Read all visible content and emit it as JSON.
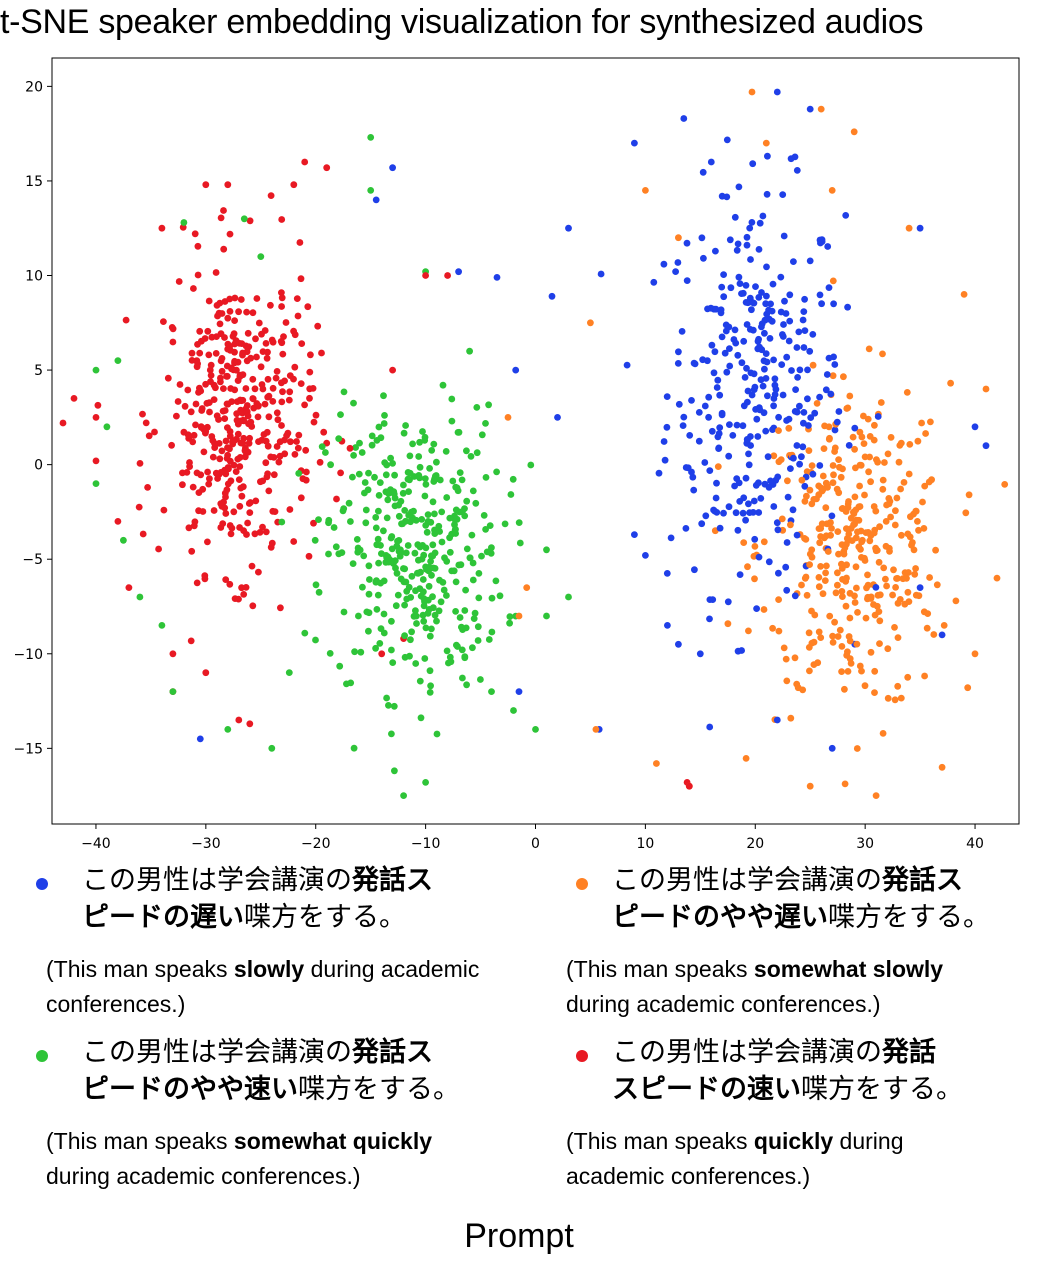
{
  "chart_data": {
    "type": "scatter",
    "title": "t-SNE speaker embedding visualization for synthesized audios",
    "xlim": [
      -44,
      44
    ],
    "ylim": [
      -19,
      21.5
    ],
    "x_ticks": [
      -40,
      -30,
      -20,
      -10,
      0,
      10,
      20,
      30,
      40
    ],
    "y_ticks": [
      -15,
      -10,
      -5,
      0,
      5,
      10,
      15,
      20
    ],
    "grid": false,
    "legend_title": "Prompt",
    "legend_placement": "below",
    "series": [
      {
        "color": "#1f3fe8",
        "cluster": {
          "center": [
            20,
            4
          ],
          "spread": [
            6.5,
            8.5
          ],
          "count": 330
        },
        "points": [
          [
            22,
            19.7
          ],
          [
            25,
            18.8
          ],
          [
            9,
            17
          ],
          [
            16,
            16
          ],
          [
            13.5,
            18.3
          ],
          [
            -13,
            15.7
          ],
          [
            -14.5,
            14
          ],
          [
            3,
            12.5
          ],
          [
            -7,
            10.2
          ],
          [
            -3.5,
            9.9
          ],
          [
            1.5,
            8.9
          ],
          [
            -1.8,
            5
          ],
          [
            2,
            2.5
          ],
          [
            -1.5,
            -12
          ],
          [
            5.8,
            -14
          ],
          [
            -30.5,
            -14.5
          ],
          [
            9,
            -3.7
          ],
          [
            10,
            -4.8
          ],
          [
            12,
            -8.5
          ],
          [
            13,
            -9.5
          ],
          [
            15,
            -10
          ],
          [
            22,
            -13.5
          ],
          [
            27,
            -15
          ],
          [
            35,
            -6.5
          ],
          [
            37,
            -9
          ],
          [
            40,
            2
          ],
          [
            41,
            1
          ],
          [
            35,
            12.5
          ]
        ]
      },
      {
        "color": "#ff8124",
        "cluster": {
          "center": [
            29,
            -4.5
          ],
          "spread": [
            7,
            7
          ],
          "count": 360
        },
        "points": [
          [
            19.7,
            19.7
          ],
          [
            26,
            18.8
          ],
          [
            29,
            17.6
          ],
          [
            21,
            17
          ],
          [
            10,
            14.5
          ],
          [
            13,
            12
          ],
          [
            5,
            7.5
          ],
          [
            -2.5,
            2.5
          ],
          [
            -0.8,
            -6.5
          ],
          [
            -1.5,
            -8
          ],
          [
            5.5,
            -14
          ],
          [
            11,
            -15.8
          ],
          [
            14,
            -17
          ],
          [
            25,
            -17
          ],
          [
            31,
            -17.5
          ],
          [
            37,
            -16
          ],
          [
            40,
            -10
          ],
          [
            42,
            -6
          ],
          [
            41,
            4
          ],
          [
            39,
            9
          ],
          [
            34,
            12.5
          ],
          [
            27,
            14.5
          ]
        ]
      },
      {
        "color": "#2ec438",
        "cluster": {
          "center": [
            -11,
            -4.5
          ],
          "spread": [
            6.5,
            6
          ],
          "count": 380
        },
        "points": [
          [
            -15,
            17.3
          ],
          [
            -25,
            11
          ],
          [
            -38,
            5.5
          ],
          [
            -40,
            5
          ],
          [
            -39,
            2
          ],
          [
            -40,
            -1
          ],
          [
            -37.5,
            -4
          ],
          [
            -36,
            -7
          ],
          [
            -34,
            -8.5
          ],
          [
            -33,
            -12
          ],
          [
            -28,
            -14
          ],
          [
            -24,
            -15
          ],
          [
            -12,
            -17.5
          ],
          [
            -10,
            -16.8
          ],
          [
            -2,
            -13
          ],
          [
            0,
            -14
          ],
          [
            1,
            -4.5
          ],
          [
            1,
            -8
          ],
          [
            3,
            -7
          ],
          [
            -4,
            -12
          ],
          [
            -15,
            14.5
          ],
          [
            -32,
            12.8
          ],
          [
            -26.5,
            13
          ],
          [
            -10,
            10.2
          ],
          [
            -6,
            6
          ]
        ]
      },
      {
        "color": "#e81923",
        "cluster": {
          "center": [
            -27,
            2.5
          ],
          "spread": [
            5.5,
            6.5
          ],
          "count": 410
        },
        "points": [
          [
            -21,
            16
          ],
          [
            -19,
            15.7
          ],
          [
            -22,
            14.8
          ],
          [
            -30,
            14.8
          ],
          [
            -28,
            14.8
          ],
          [
            -34,
            12.5
          ],
          [
            -43,
            2.2
          ],
          [
            -42,
            3.5
          ],
          [
            -40,
            2.5
          ],
          [
            -40,
            0.2
          ],
          [
            -38,
            -3
          ],
          [
            -37,
            -6.5
          ],
          [
            -33,
            -10
          ],
          [
            -33,
            -12
          ],
          [
            -30,
            -11
          ],
          [
            -27,
            -13.5
          ],
          [
            -26,
            -13.7
          ],
          [
            -14,
            -10
          ],
          [
            -12,
            -9.2
          ],
          [
            -8,
            10
          ],
          [
            -10,
            10
          ],
          [
            -13,
            5
          ],
          [
            14,
            -17
          ],
          [
            13.8,
            -16.8
          ]
        ]
      }
    ]
  },
  "legend": {
    "title": "Prompt",
    "items": [
      {
        "color": "#1f3fe8",
        "jp_pre": "この男性は学会講演の",
        "jp_bold1": "発話ス",
        "jp_bold2": "ピードの遅い",
        "jp_post": "喋方をする。",
        "en_pre": "(This man speaks ",
        "en_bold": "slowly",
        "en_post": " during academic",
        "en_line2": "conferences.)"
      },
      {
        "color": "#ff8124",
        "jp_pre": "この男性は学会講演の",
        "jp_bold1": "発話ス",
        "jp_bold2": "ピードのやや遅い",
        "jp_post": "喋方をする。",
        "en_pre": "(This man speaks ",
        "en_bold": "somewhat slowly",
        "en_post": "",
        "en_line2": "during academic conferences.)"
      },
      {
        "color": "#2ec438",
        "jp_pre": "この男性は学会講演の",
        "jp_bold1": "発話ス",
        "jp_bold2": "ピードのやや速い",
        "jp_post": "喋方をする。",
        "en_pre": "(This man speaks ",
        "en_bold": "somewhat quickly",
        "en_post": "",
        "en_line2": "during academic conferences.)"
      },
      {
        "color": "#e81923",
        "jp_pre": "この男性は学会講演の",
        "jp_bold1": "発話",
        "jp_bold2": "スピードの速い",
        "jp_post": "喋方をする。",
        "en_pre": "(This man speaks ",
        "en_bold": "quickly",
        "en_post": " during",
        "en_line2": "academic conferences.)"
      }
    ]
  }
}
